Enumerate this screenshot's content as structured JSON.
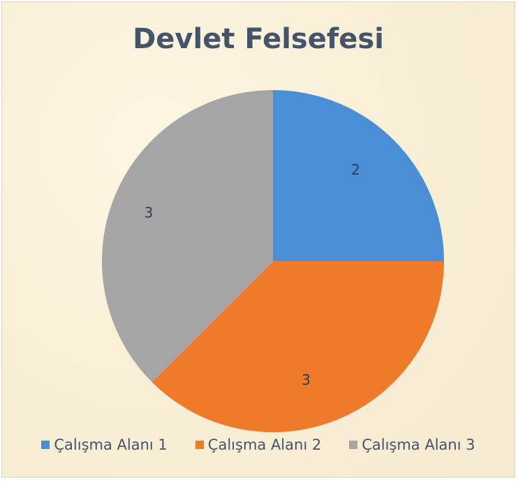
{
  "chart_data": {
    "type": "pie",
    "title": "Devlet Felsefesi",
    "categories": [
      "Çalışma Alanı 1",
      "Çalışma Alanı 2",
      "Çalışma Alanı 3"
    ],
    "values": [
      2,
      3,
      3
    ],
    "data_labels": [
      "2",
      "3",
      "3"
    ],
    "colors": [
      "#4a8fd6",
      "#ee7a2a",
      "#a5a5a5"
    ],
    "start_angle": "top, clockwise",
    "legend": "bottom"
  }
}
